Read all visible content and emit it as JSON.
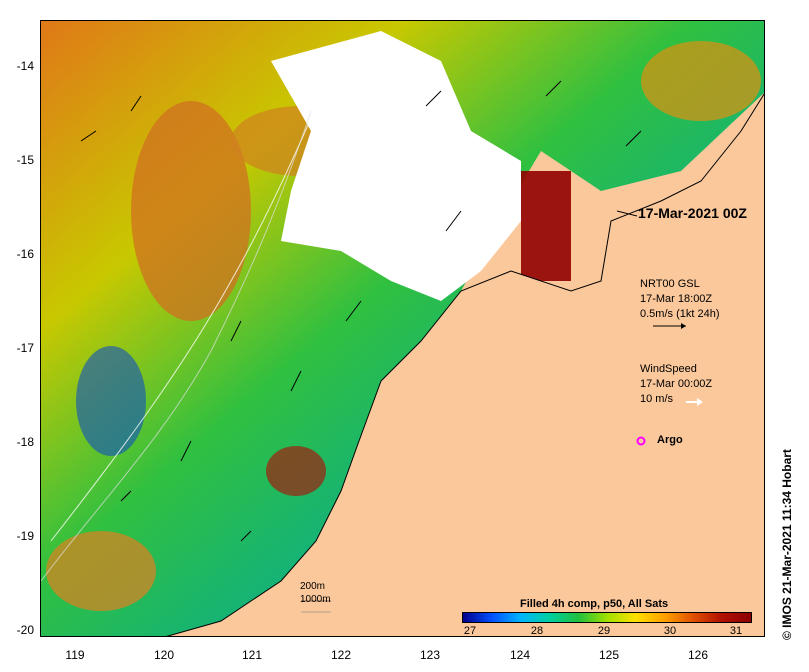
{
  "map": {
    "lat_labels": [
      "-14",
      "-15",
      "-16",
      "-17",
      "-18",
      "-19",
      "-20"
    ],
    "lon_labels": [
      "119",
      "120",
      "121",
      "122",
      "123",
      "124",
      "125",
      "126"
    ],
    "timestamp": "17-Mar-2021 00Z",
    "current_legend": {
      "title": "NRT00 GSL",
      "time": "17-Mar 18:00Z",
      "scale": "0.5m/s (1kt 24h)"
    },
    "wind_legend": {
      "title": "WindSpeed",
      "time": "17-Mar 00:00Z",
      "scale": "10 m/s"
    },
    "argo_label": "Argo",
    "depth_contours": [
      "200m",
      "1000m"
    ],
    "colorbar": {
      "title": "Filled 4h comp, p50, All Sats",
      "ticks": [
        "27",
        "28",
        "29",
        "30",
        "31"
      ]
    },
    "credit": "© IMOS 21-Mar-2021 11:34 Hobart",
    "colors": {
      "land": "#fac89b",
      "sst_cold": "#00008c",
      "sst_warm": "#8c0000",
      "argo": "#ff00ff"
    }
  }
}
